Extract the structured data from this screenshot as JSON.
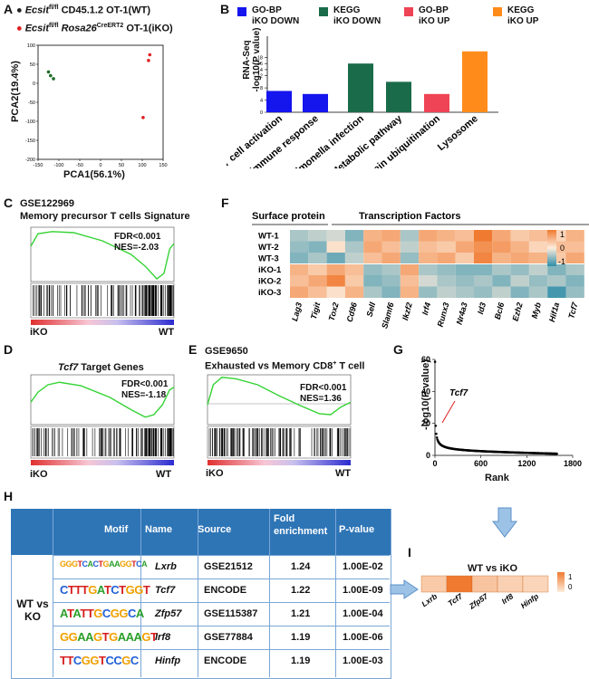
{
  "panels": {
    "A": "A",
    "B": "B",
    "C": "C",
    "D": "D",
    "E": "E",
    "F": "F",
    "G": "G",
    "H": "H",
    "I": "I"
  },
  "colors": {
    "wt_dot": "#222222",
    "iko_dot": "#e02020",
    "pca_green": "#1e6b2c",
    "gobp_down": "#1515ee",
    "kegg_down": "#1a6b4a",
    "gobp_up": "#ee4455",
    "kegg_up": "#ff8c1a",
    "gsea_line": "#34d334",
    "table_blue": "#2e75b6",
    "heat_high": "#f07a30",
    "heat_low": "#2f8ea8"
  },
  "panelA": {
    "legend_wt_prefix": "Ecsit",
    "legend_wt_sup": "fl/fl",
    "legend_wt_rest": " CD45.1.2 OT-1(WT)",
    "legend_iko_prefix": "Ecsit",
    "legend_iko_sup": "fl/fl",
    "legend_iko_gene": " Rosa26",
    "legend_iko_sup2": "CreERT2",
    "legend_iko_rest": " OT-1(iKO)",
    "xlabel": "PCA1(56.1%)",
    "ylabel": "PCA2(19.4%)",
    "xticks": [
      "-150",
      "-100",
      "-50",
      "0",
      "50",
      "100",
      "150"
    ],
    "yticks": [
      "100",
      "50",
      "0",
      "-50",
      "-100",
      "-150",
      "-200"
    ]
  },
  "chart_data": [
    {
      "type": "scatter",
      "title": "",
      "xlabel": "PCA1(56.1%)",
      "ylabel": "PCA2(19.4%)",
      "xlim": [
        -150,
        150
      ],
      "ylim": [
        -200,
        100
      ],
      "series": [
        {
          "name": "WT",
          "points": [
            [
              -125,
              30
            ],
            [
              -120,
              20
            ],
            [
              -113,
              12
            ]
          ]
        },
        {
          "name": "iKO",
          "points": [
            [
              118,
              75
            ],
            [
              115,
              60
            ],
            [
              102,
              -90
            ]
          ]
        }
      ]
    },
    {
      "type": "bar",
      "title": "",
      "ylabel": "RNA-Seq -log10(P value)",
      "categories": [
        "T cell activation",
        "Adaptive immune response",
        "Salmonella infection",
        "Metabolic pathway",
        "Protein ubiquitination",
        "Lysosome"
      ],
      "values": [
        7,
        6,
        16,
        10,
        6,
        20
      ],
      "groups": [
        "GO-BP iKO DOWN",
        "GO-BP iKO DOWN",
        "KEGG iKO DOWN",
        "KEGG iKO DOWN",
        "GO-BP iKO UP",
        "KEGG iKO UP"
      ],
      "yticks": [
        "0",
        "4",
        "8",
        "12",
        "14",
        "16",
        "18"
      ]
    },
    {
      "type": "scatter",
      "title": "",
      "xlabel": "Rank",
      "ylabel": "-log10(P value)",
      "xlim": [
        0,
        1800
      ],
      "ylim": [
        0,
        60
      ],
      "annotation": "Tcf7",
      "xticks": [
        "0",
        "600",
        "1200",
        "1800"
      ],
      "yticks": [
        "0",
        "20",
        "40",
        "60"
      ]
    },
    {
      "type": "heatmap",
      "title": "WT vs iKO",
      "columns": [
        "Lxrb",
        "Tcf7",
        "Zfp57",
        "Irf8",
        "Hinfp"
      ],
      "values": [
        0.3,
        1.0,
        0.35,
        0.25,
        0.2
      ],
      "legend_ticks": [
        "1",
        "0"
      ]
    }
  ],
  "panelB": {
    "legend": [
      {
        "line1": "GO-BP",
        "line2": "iKO DOWN"
      },
      {
        "line1": "KEGG",
        "line2": "iKO DOWN"
      },
      {
        "line1": "GO-BP",
        "line2": "iKO UP"
      },
      {
        "line1": "KEGG",
        "line2": "iKO UP"
      }
    ],
    "ylabel_line1": "RNA-Seq",
    "ylabel_line2": "-log10(P value)"
  },
  "panelC": {
    "title1": "GSE122969",
    "title2": "Memory precursor T cells Signature",
    "fdr": "FDR<0.001",
    "nes": "NES=-2.03",
    "left": "iKO",
    "right": "WT"
  },
  "panelD": {
    "title_gene": "Tcf7",
    "title_rest": " Target Genes",
    "fdr": "FDR<0.001",
    "nes": "NES=-1.18",
    "left": "iKO",
    "right": "WT"
  },
  "panelE": {
    "title1": "GSE9650",
    "title2_a": "Exhausted vs Memory CD8",
    "title2_sup": "+",
    "title2_b": " T cell",
    "fdr": "FDR<0.001",
    "nes": "NES=1.36",
    "left": "iKO",
    "right": "WT"
  },
  "panelF": {
    "group1": "Surface protein",
    "group2": "Transcription Factors",
    "rows": [
      "WT-1",
      "WT-2",
      "WT-3",
      "iKO-1",
      "iKO-2",
      "iKO-3"
    ],
    "cols": [
      "Lag3",
      "Tigit",
      "Tox2",
      "Cd96",
      "Sell",
      "Slamf6",
      "Ikzf2",
      "Irf4",
      "Runx3",
      "Nr4a3",
      "Id3",
      "Bcl6",
      "Ezh2",
      "Myb",
      "Hif1a",
      "Tcf7"
    ],
    "scale": [
      "1",
      "0",
      "-1"
    ],
    "values": [
      [
        -0.4,
        -0.3,
        -0.2,
        -0.6,
        0.5,
        0.6,
        -0.4,
        0.6,
        0.5,
        0.4,
        1.0,
        0.6,
        0.3,
        0.4,
        0.2,
        0.5
      ],
      [
        -0.5,
        -0.6,
        0.1,
        -0.4,
        0.6,
        0.4,
        -0.3,
        0.4,
        0.3,
        0.6,
        0.8,
        0.7,
        0.5,
        0.2,
        0.4,
        0.4
      ],
      [
        -0.6,
        -0.4,
        -0.7,
        -0.3,
        0.4,
        0.6,
        -0.5,
        0.5,
        0.6,
        0.3,
        0.9,
        0.5,
        0.6,
        0.5,
        0.3,
        0.6
      ],
      [
        0.5,
        0.3,
        0.6,
        0.4,
        -0.5,
        -0.4,
        0.6,
        -0.4,
        -0.5,
        -0.6,
        -0.6,
        -0.4,
        -0.5,
        -0.3,
        -0.6,
        -0.4
      ],
      [
        0.4,
        0.6,
        0.9,
        0.3,
        -0.6,
        -0.5,
        0.4,
        -0.2,
        -0.4,
        -0.5,
        -0.4,
        -0.6,
        -0.3,
        -0.5,
        -0.4,
        -0.6
      ],
      [
        0.6,
        0.4,
        0.1,
        0.5,
        -0.4,
        -0.6,
        0.5,
        -0.5,
        -0.3,
        -0.4,
        -0.5,
        -0.3,
        -0.6,
        -0.4,
        -0.9,
        -0.5
      ]
    ]
  },
  "panelG": {
    "xlabel": "Rank",
    "ylabel": "-log10(P value)",
    "annotation": "Tcf7",
    "xticks": [
      "0",
      "600",
      "1200",
      "1800"
    ],
    "yticks": [
      "0",
      "20",
      "40",
      "60"
    ]
  },
  "panelH": {
    "headers": [
      "Motif",
      "Name",
      "Source",
      "Fold enrichment",
      "P-value"
    ],
    "group": "WT vs KO",
    "rows": [
      {
        "logo": "GGGTCACTGAAGGTCA",
        "name": "Lxrb",
        "source": "GSE21512",
        "fold": "1.24",
        "p": "1.00E-02"
      },
      {
        "logo": "CTTTGATCTGGT",
        "name": "Tcf7",
        "source": "ENCODE",
        "fold": "1.22",
        "p": "1.00E-09"
      },
      {
        "logo": "ATATTGCGGCA",
        "name": "Zfp57",
        "source": "GSE115387",
        "fold": "1.21",
        "p": "1.00E-04"
      },
      {
        "logo": "GGAAGTGAAAGT",
        "name": "Irf8",
        "source": "GSE77884",
        "fold": "1.19",
        "p": "1.00E-06"
      },
      {
        "logo": "TTCGGTCCGC",
        "name": "Hinfp",
        "source": "ENCODE",
        "fold": "1.19",
        "p": "1.00E-03"
      }
    ]
  },
  "panelI": {
    "title": "WT vs iKO",
    "cols": [
      "Lxrb",
      "Tcf7",
      "Zfp57",
      "Irf8",
      "Hinfp"
    ],
    "scale": [
      "1",
      "0"
    ]
  }
}
